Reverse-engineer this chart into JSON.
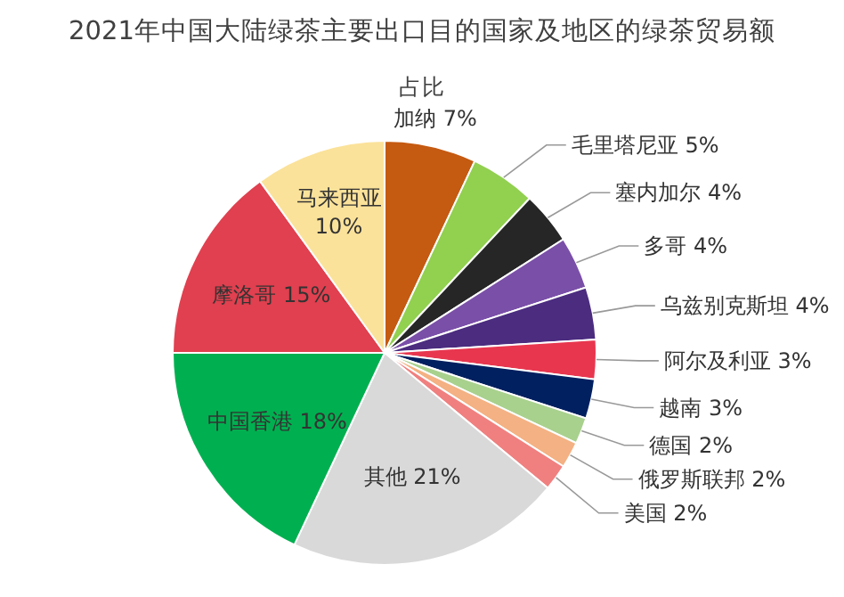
{
  "chart_data": {
    "type": "pie",
    "title": "2021年中国大陆绿茶主要出口目的国家及地区的绿茶贸易额",
    "subtitle": "占比",
    "categories": [
      "加纳",
      "毛里塔尼亚",
      "塞内加尔",
      "多哥",
      "乌兹别克斯坦",
      "阿尔及利亚",
      "越南",
      "德国",
      "俄罗斯联邦",
      "美国",
      "其他",
      "中国香港",
      "摩洛哥",
      "马来西亚"
    ],
    "values": [
      7,
      5,
      4,
      4,
      4,
      3,
      3,
      2,
      2,
      2,
      21,
      18,
      15,
      10
    ],
    "value_labels": [
      "7%",
      "5%",
      "4%",
      "4%",
      "4%",
      "3%",
      "3%",
      "2%",
      "2%",
      "2%",
      "21%",
      "18%",
      "15%",
      "10%"
    ],
    "colors": [
      "#c55a11",
      "#92d050",
      "#262626",
      "#7a4fa8",
      "#4b2c7f",
      "#e8364f",
      "#002060",
      "#a9d18e",
      "#f4b183",
      "#f08080",
      "#d9d9d9",
      "#00b050",
      "#e0404f",
      "#fbe29a"
    ]
  }
}
